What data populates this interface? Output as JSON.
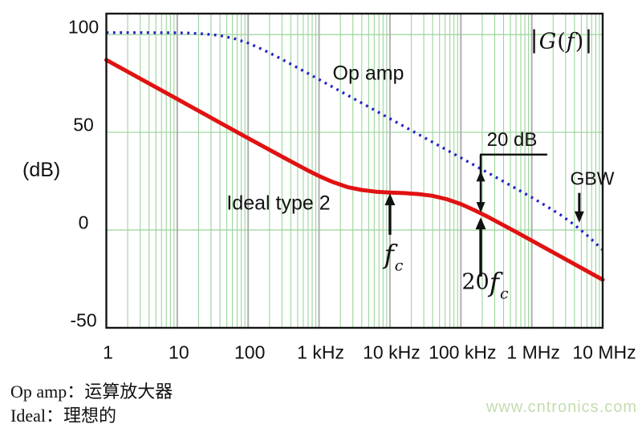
{
  "chart_data": {
    "type": "line",
    "title_parts": {
      "bar_left": "|",
      "G": "G",
      "lparen": "(",
      "f": "f",
      "rparen": ")",
      "bar_right": "|"
    },
    "ylabel": "(dB)",
    "x_scale": "log10-frequency-Hz",
    "x_range_decades": [
      0,
      7
    ],
    "y_frame_range_db": [
      -50,
      110.7
    ],
    "grid": {
      "minor_color": "#9bd49b",
      "major_color": "#b0b0b0",
      "frame_color": "#161616"
    },
    "y_ticks": [
      {
        "db": 100,
        "label": "100"
      },
      {
        "db": 50,
        "label": "50"
      },
      {
        "db": 0,
        "label": "0"
      },
      {
        "db": -50,
        "label": "-50"
      }
    ],
    "x_ticks": [
      {
        "d": 0,
        "label": "1"
      },
      {
        "d": 1,
        "label": "10"
      },
      {
        "d": 2,
        "label": "100"
      },
      {
        "d": 3,
        "label": "1 kHz"
      },
      {
        "d": 4,
        "label": "10 kHz"
      },
      {
        "d": 5,
        "label": "100 kHz"
      },
      {
        "d": 6,
        "label": "1 MHz"
      },
      {
        "d": 7,
        "label": "10 MHz"
      }
    ],
    "series": [
      {
        "name": "Op amp",
        "style": "dotted",
        "color": "#2424c8",
        "points_log10f_db": [
          [
            0,
            101
          ],
          [
            0.5,
            101
          ],
          [
            1,
            100.9
          ],
          [
            1.2,
            100.7
          ],
          [
            1.4,
            100.3
          ],
          [
            1.6,
            99.5
          ],
          [
            1.8,
            98.0
          ],
          [
            2.0,
            95.6
          ],
          [
            2.2,
            92.4
          ],
          [
            2.4,
            88.8
          ],
          [
            2.6,
            84.9
          ],
          [
            2.8,
            81.0
          ],
          [
            3.0,
            77.0
          ],
          [
            3.5,
            67.0
          ],
          [
            4.0,
            57.0
          ],
          [
            4.5,
            47.0
          ],
          [
            5.0,
            37.0
          ],
          [
            5.5,
            26.9
          ],
          [
            6.0,
            16.7
          ],
          [
            6.2,
            12.4
          ],
          [
            6.4,
            7.9
          ],
          [
            6.6,
            2.7
          ],
          [
            6.8,
            -3.3
          ],
          [
            7.0,
            -10.1
          ]
        ]
      },
      {
        "name": "Ideal type 2",
        "style": "solid",
        "color": "#e11212",
        "points_log10f_db": [
          [
            0,
            87
          ],
          [
            0.5,
            77
          ],
          [
            1,
            67
          ],
          [
            1.5,
            57
          ],
          [
            2,
            47
          ],
          [
            2.5,
            37.1
          ],
          [
            2.8,
            31.3
          ],
          [
            3.0,
            27.6
          ],
          [
            3.2,
            24.5
          ],
          [
            3.4,
            22.0
          ],
          [
            3.6,
            20.5
          ],
          [
            3.8,
            19.6
          ],
          [
            4.0,
            19.2
          ],
          [
            4.2,
            18.9
          ],
          [
            4.4,
            18.4
          ],
          [
            4.6,
            17.5
          ],
          [
            4.8,
            15.8
          ],
          [
            5.0,
            13.3
          ],
          [
            5.2,
            10.0
          ],
          [
            5.4,
            6.4
          ],
          [
            5.6,
            2.5
          ],
          [
            5.8,
            -1.4
          ],
          [
            6.0,
            -5.4
          ],
          [
            6.5,
            -15.4
          ],
          [
            7.0,
            -25.4
          ]
        ]
      }
    ],
    "annotations": {
      "gain_gap": {
        "label": "20 dB",
        "d": 5.28,
        "top_db": 30.2,
        "bottom_db": 9.0,
        "leader_db": 38.6,
        "line_end_d": 6.218
      },
      "gbw": {
        "label": "GBW",
        "d": 6.67,
        "tail_db": 19.0,
        "tip_db": 3.8
      },
      "fc": {
        "f": "f",
        "sub": "c",
        "d": 4.0,
        "tail_db": -2.4,
        "tip_db": 18.8
      },
      "fc20": {
        "prefix": "20",
        "f": "f",
        "sub": "c",
        "d": 5.28,
        "tail_db": -23.8,
        "tip_db": 6.5
      }
    }
  },
  "labels": {
    "op_amp": "Op amp",
    "ideal": "Ideal type 2"
  },
  "captions": {
    "line1": "Op amp：运算放大器",
    "line2": "Ideal：理想的"
  },
  "watermark": {
    "text": "www.cntronics.com",
    "color": "#c4dcae"
  }
}
